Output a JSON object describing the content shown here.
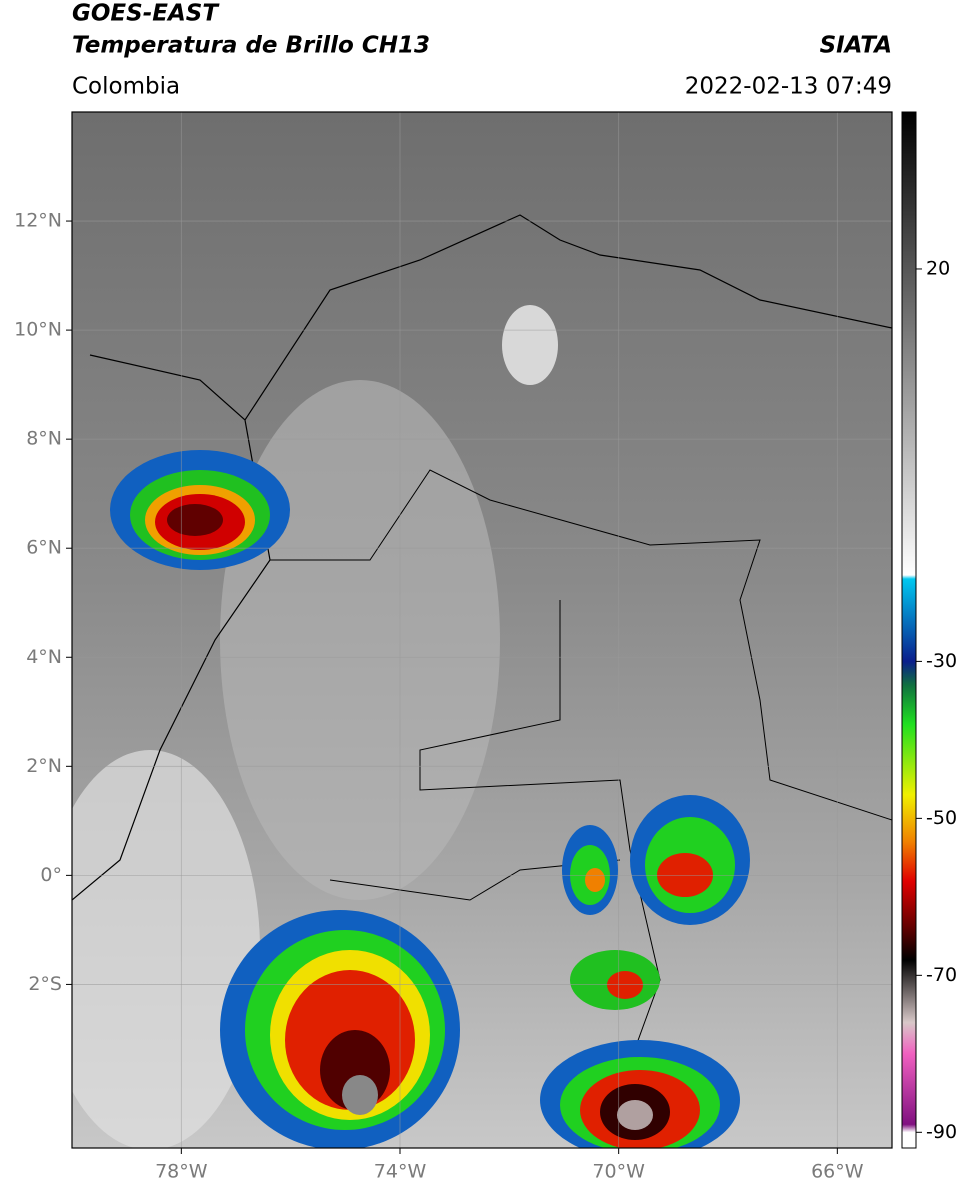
{
  "chart_data": {
    "type": "map",
    "title": "GOES-EAST",
    "subtitle": "Temperatura de Brillo CH13",
    "source": "SIATA",
    "region": "Colombia",
    "timestamp": "2022-02-13 07:49",
    "xlim": [
      -80,
      -65
    ],
    "ylim": [
      -5,
      14
    ],
    "xticks": [
      {
        "value": -78,
        "label": "78°W"
      },
      {
        "value": -74,
        "label": "74°W"
      },
      {
        "value": -70,
        "label": "70°W"
      },
      {
        "value": -66,
        "label": "66°W"
      }
    ],
    "yticks": [
      {
        "value": 12,
        "label": "12°N"
      },
      {
        "value": 10,
        "label": "10°N"
      },
      {
        "value": 8,
        "label": "8°N"
      },
      {
        "value": 6,
        "label": "6°N"
      },
      {
        "value": 4,
        "label": "4°N"
      },
      {
        "value": 2,
        "label": "2°N"
      },
      {
        "value": 0,
        "label": "0°"
      },
      {
        "value": -2,
        "label": "2°S"
      }
    ],
    "grid": true,
    "colorbar": {
      "lim": [
        -92,
        40
      ],
      "ticks": [
        20,
        -30,
        -50,
        -70,
        -90
      ],
      "colormap": [
        {
          "value": 40,
          "color": "#000000"
        },
        {
          "value": -19,
          "color": "#ffffff"
        },
        {
          "value": -19.5,
          "color": "#00c8f0"
        },
        {
          "value": -30,
          "color": "#0a1e8c"
        },
        {
          "value": -33,
          "color": "#107040"
        },
        {
          "value": -38,
          "color": "#20e020"
        },
        {
          "value": -47,
          "color": "#f0f000"
        },
        {
          "value": -53,
          "color": "#f08000"
        },
        {
          "value": -58,
          "color": "#e00000"
        },
        {
          "value": -64,
          "color": "#600000"
        },
        {
          "value": -68,
          "color": "#000000"
        },
        {
          "value": -76,
          "color": "#d8c8c8"
        },
        {
          "value": -80,
          "color": "#f060c0"
        },
        {
          "value": -89,
          "color": "#801080"
        },
        {
          "value": -90,
          "color": "#ffffff"
        }
      ]
    }
  }
}
